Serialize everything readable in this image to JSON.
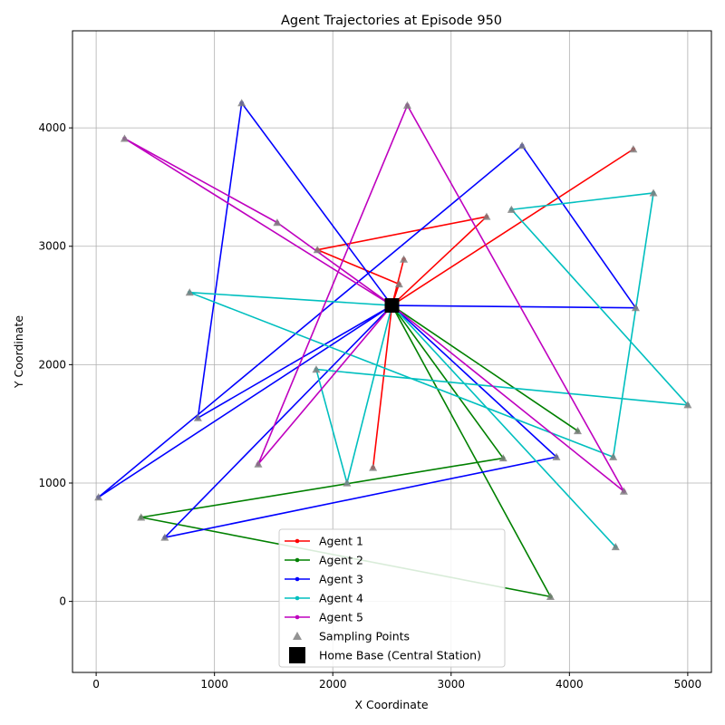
{
  "chart_data": {
    "type": "line",
    "title": "Agent Trajectories at Episode 950",
    "xlabel": "X Coordinate",
    "ylabel": "Y Coordinate",
    "xlim": [
      -200,
      5200
    ],
    "ylim": [
      -600,
      4820
    ],
    "xticks": [
      0,
      1000,
      2000,
      3000,
      4000,
      5000
    ],
    "yticks": [
      0,
      1000,
      2000,
      3000,
      4000
    ],
    "grid": true,
    "legend_position": "lower-center",
    "home_base": {
      "name": "Home Base (Central Station)",
      "x": 2500,
      "y": 2500,
      "color": "#000000"
    },
    "sampling_points_label": "Sampling Points",
    "sampling_color": "#808080",
    "series": [
      {
        "name": "Agent 1",
        "color": "#ff0000",
        "points": [
          [
            2500,
            2500
          ],
          [
            2600,
            2890
          ],
          [
            2500,
            2500
          ],
          [
            2560,
            2680
          ],
          [
            1870,
            2970
          ],
          [
            3300,
            3250
          ],
          [
            2500,
            2500
          ],
          [
            4540,
            3820
          ],
          [
            2500,
            2500
          ],
          [
            2340,
            1130
          ],
          [
            2500,
            2500
          ]
        ],
        "sampling": [
          [
            2600,
            2890
          ],
          [
            2560,
            2680
          ],
          [
            1870,
            2970
          ],
          [
            3300,
            3250
          ],
          [
            4540,
            3820
          ],
          [
            2340,
            1130
          ]
        ]
      },
      {
        "name": "Agent 2",
        "color": "#008000",
        "points": [
          [
            2500,
            2500
          ],
          [
            4070,
            1440
          ],
          [
            2500,
            2500
          ],
          [
            3440,
            1210
          ],
          [
            380,
            710
          ],
          [
            3840,
            40
          ],
          [
            2500,
            2500
          ]
        ],
        "sampling": [
          [
            4070,
            1440
          ],
          [
            3440,
            1210
          ],
          [
            380,
            710
          ],
          [
            3840,
            40
          ]
        ]
      },
      {
        "name": "Agent 3",
        "color": "#0000ff",
        "points": [
          [
            2500,
            2500
          ],
          [
            4560,
            2480
          ],
          [
            3600,
            3850
          ],
          [
            20,
            880
          ],
          [
            2500,
            2500
          ],
          [
            1230,
            4210
          ],
          [
            860,
            1550
          ],
          [
            2500,
            2500
          ],
          [
            3890,
            1220
          ],
          [
            580,
            540
          ],
          [
            2500,
            2500
          ]
        ],
        "sampling": [
          [
            4560,
            2480
          ],
          [
            3600,
            3850
          ],
          [
            20,
            880
          ],
          [
            1230,
            4210
          ],
          [
            860,
            1550
          ],
          [
            3890,
            1220
          ],
          [
            580,
            540
          ]
        ]
      },
      {
        "name": "Agent 4",
        "color": "#00bfbf",
        "points": [
          [
            2500,
            2500
          ],
          [
            790,
            2610
          ],
          [
            4370,
            1220
          ],
          [
            4710,
            3450
          ],
          [
            3510,
            3310
          ],
          [
            5000,
            1660
          ],
          [
            1860,
            1960
          ],
          [
            2120,
            1000
          ],
          [
            2500,
            2500
          ],
          [
            4390,
            460
          ],
          [
            2500,
            2500
          ]
        ],
        "sampling": [
          [
            790,
            2610
          ],
          [
            4370,
            1220
          ],
          [
            4710,
            3450
          ],
          [
            3510,
            3310
          ],
          [
            5000,
            1660
          ],
          [
            1860,
            1960
          ],
          [
            2120,
            1000
          ],
          [
            4390,
            460
          ]
        ]
      },
      {
        "name": "Agent 5",
        "color": "#bf00bf",
        "points": [
          [
            2500,
            2500
          ],
          [
            1530,
            3200
          ],
          [
            240,
            3910
          ],
          [
            2500,
            2500
          ],
          [
            4460,
            930
          ],
          [
            2630,
            4190
          ],
          [
            1370,
            1160
          ],
          [
            2500,
            2500
          ]
        ],
        "sampling": [
          [
            1530,
            3200
          ],
          [
            240,
            3910
          ],
          [
            4460,
            930
          ],
          [
            2630,
            4190
          ],
          [
            1370,
            1160
          ]
        ]
      }
    ]
  }
}
